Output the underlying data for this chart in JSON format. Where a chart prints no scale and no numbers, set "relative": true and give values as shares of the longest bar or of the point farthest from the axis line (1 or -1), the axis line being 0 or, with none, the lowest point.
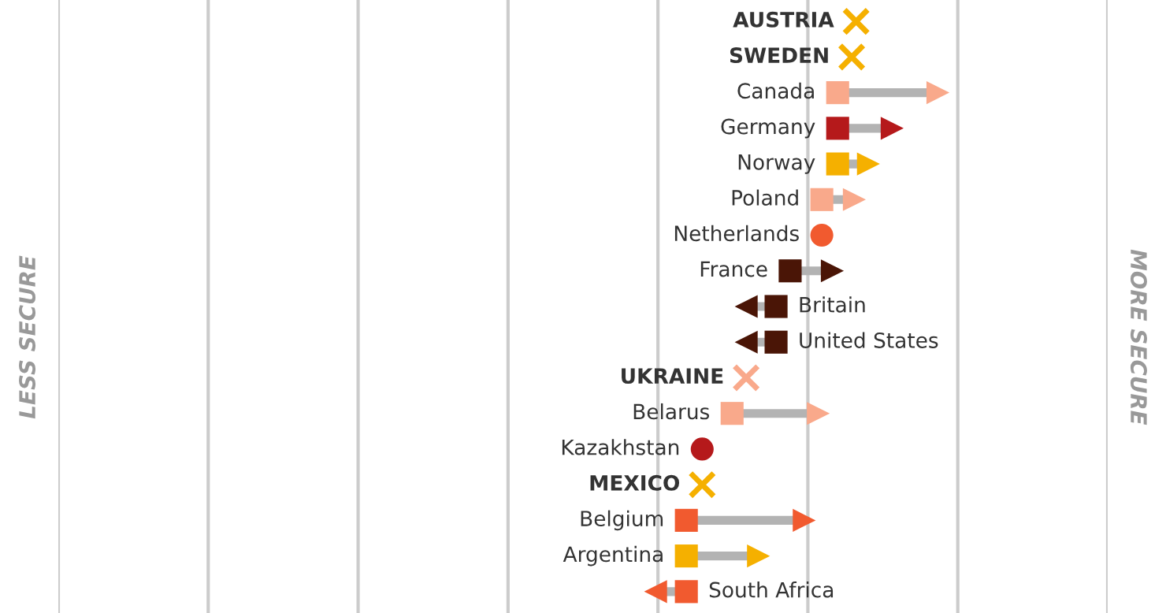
{
  "chart_data": {
    "type": "scatter",
    "orientation": "horizontal",
    "relative": true,
    "grid": "x",
    "categories": [
      "AUSTRIA",
      "SWEDEN",
      "Canada",
      "Germany",
      "Norway",
      "Poland",
      "Netherlands",
      "France",
      "Britain",
      "United States",
      "UKRAINE",
      "Belarus",
      "Kazakhstan",
      "MEXICO",
      "Belgium",
      "Argentina",
      "South Africa"
    ],
    "annotations": [
      "LESS SECURE",
      "MORE SECURE"
    ],
    "series": [
      {
        "marker": "triangle",
        "colors": [
          null,
          null,
          "#f9a98b",
          "#b5191b",
          "#f5b000",
          "#f9a98b",
          null,
          "#4a1506",
          "#4a1506",
          "#4a1506",
          null,
          "#f9a98b",
          null,
          null,
          "#f15a2f",
          "#f5b000",
          "#f15a2f"
        ],
        "values": [
          null,
          null,
          1.0,
          0.948,
          0.921,
          0.905,
          null,
          0.88,
          0.782,
          0.782,
          null,
          0.864,
          null,
          null,
          0.848,
          0.796,
          0.679
        ]
      },
      {
        "marker": "square",
        "colors": [
          null,
          null,
          "#f9a98b",
          "#b5191b",
          "#f5b000",
          "#f9a98b",
          null,
          "#4a1506",
          "#4a1506",
          "#4a1506",
          null,
          "#f9a98b",
          null,
          null,
          "#f15a2f",
          "#f5b000",
          "#f15a2f"
        ],
        "values": [
          null,
          null,
          0.886,
          0.886,
          0.886,
          0.868,
          null,
          0.832,
          0.816,
          0.816,
          null,
          0.766,
          null,
          null,
          0.714,
          0.714,
          0.714
        ]
      },
      {
        "marker": "circle",
        "colors": [
          null,
          null,
          null,
          null,
          null,
          null,
          "#f15a2f",
          null,
          null,
          null,
          null,
          null,
          "#b5191b",
          null,
          null,
          null,
          null
        ],
        "values": [
          null,
          null,
          null,
          null,
          null,
          null,
          0.868,
          null,
          null,
          null,
          null,
          null,
          0.732,
          null,
          null,
          null,
          null
        ]
      },
      {
        "marker": "cross",
        "colors": [
          "#f5b000",
          "#f5b000",
          null,
          null,
          null,
          null,
          null,
          null,
          null,
          null,
          "#f9a98b",
          null,
          null,
          "#f5b000",
          null,
          null,
          null
        ],
        "values": [
          0.907,
          0.902,
          null,
          null,
          null,
          null,
          null,
          null,
          null,
          null,
          0.782,
          null,
          null,
          0.732,
          null,
          null,
          null
        ]
      }
    ]
  }
}
